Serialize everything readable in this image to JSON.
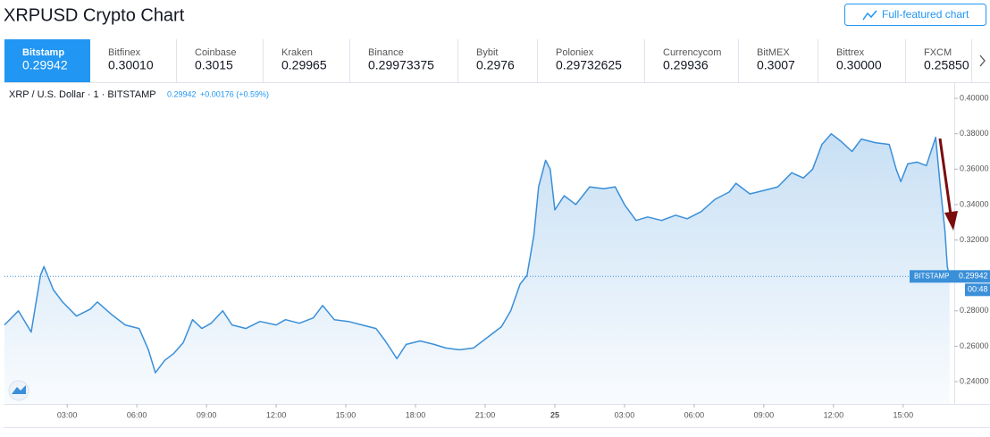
{
  "page_title": "XRPUSD Crypto Chart",
  "button": "Full-featured chart",
  "tabs": [
    {
      "name": "Bitstamp",
      "price": "0.29942"
    },
    {
      "name": "Bitfinex",
      "price": "0.30010"
    },
    {
      "name": "Coinbase",
      "price": "0.3015"
    },
    {
      "name": "Kraken",
      "price": "0.29965"
    },
    {
      "name": "Binance",
      "price": "0.29973375"
    },
    {
      "name": "Bybit",
      "price": "0.2976"
    },
    {
      "name": "Poloniex",
      "price": "0.29732625"
    },
    {
      "name": "Currencycom",
      "price": "0.29936"
    },
    {
      "name": "BitMEX",
      "price": "0.3007"
    },
    {
      "name": "Bittrex",
      "price": "0.30000"
    },
    {
      "name": "FXCM",
      "price": "0.25850"
    }
  ],
  "chart_data": {
    "type": "line",
    "symbol": "XRP / U.S. Dollar · 1 · BITSTAMP",
    "price": "0.29942",
    "change": "+0.00176 (+0.59%)",
    "series": [
      {
        "name": "XRPUSD",
        "color": "#3a8fd9",
        "x": [
          0.3,
          0.9,
          1.45,
          1.85,
          2.0,
          2.4,
          2.8,
          3.4,
          4.0,
          4.3,
          4.9,
          5.5,
          6.1,
          6.5,
          6.8,
          7.2,
          7.6,
          8.0,
          8.4,
          8.8,
          9.2,
          9.7,
          10.1,
          10.7,
          11.3,
          12.0,
          12.4,
          13.0,
          13.6,
          14.0,
          14.5,
          15.1,
          15.7,
          16.3,
          16.7,
          17.2,
          17.6,
          18.2,
          18.8,
          19.3,
          19.9,
          20.5,
          21.1,
          21.7,
          22.1,
          22.5,
          22.8,
          23.1,
          23.3,
          23.6,
          23.8,
          24.0,
          24.4,
          24.9,
          25.5,
          26.1,
          26.6,
          27.0,
          27.5,
          28.0,
          28.6,
          29.2,
          29.7,
          30.3,
          30.9,
          31.5,
          31.8,
          32.4,
          33.0,
          33.6,
          34.2,
          34.7,
          35.1,
          35.5,
          35.9,
          36.3,
          36.8,
          37.2,
          37.8,
          38.4,
          38.7,
          38.9,
          39.2,
          39.6,
          40.0,
          40.4,
          40.6,
          40.8,
          40.9,
          41.0
        ],
        "values": [
          0.272,
          0.28,
          0.268,
          0.3,
          0.305,
          0.292,
          0.285,
          0.277,
          0.281,
          0.285,
          0.278,
          0.272,
          0.27,
          0.258,
          0.245,
          0.252,
          0.256,
          0.262,
          0.275,
          0.27,
          0.273,
          0.28,
          0.272,
          0.27,
          0.274,
          0.272,
          0.275,
          0.273,
          0.276,
          0.283,
          0.275,
          0.274,
          0.272,
          0.27,
          0.263,
          0.253,
          0.261,
          0.263,
          0.261,
          0.259,
          0.258,
          0.259,
          0.265,
          0.271,
          0.28,
          0.295,
          0.3,
          0.323,
          0.35,
          0.365,
          0.36,
          0.337,
          0.345,
          0.34,
          0.35,
          0.349,
          0.35,
          0.34,
          0.331,
          0.333,
          0.331,
          0.334,
          0.332,
          0.336,
          0.343,
          0.347,
          0.352,
          0.346,
          0.348,
          0.35,
          0.358,
          0.355,
          0.36,
          0.374,
          0.38,
          0.376,
          0.37,
          0.377,
          0.375,
          0.374,
          0.36,
          0.353,
          0.363,
          0.364,
          0.362,
          0.378,
          0.35,
          0.325,
          0.305,
          0.29942
        ]
      }
    ],
    "xlim": [
      0.3,
      41.2
    ],
    "xticks": [
      {
        "value": 3,
        "label": "03:00"
      },
      {
        "value": 6,
        "label": "06:00"
      },
      {
        "value": 9,
        "label": "09:00"
      },
      {
        "value": 12,
        "label": "12:00"
      },
      {
        "value": 15,
        "label": "15:00"
      },
      {
        "value": 18,
        "label": "18:00"
      },
      {
        "value": 21,
        "label": "21:00"
      },
      {
        "value": 24,
        "label": "25"
      },
      {
        "value": 27,
        "label": "03:00"
      },
      {
        "value": 30,
        "label": "06:00"
      },
      {
        "value": 33,
        "label": "09:00"
      },
      {
        "value": 36,
        "label": "12:00"
      },
      {
        "value": 39,
        "label": "15:00"
      }
    ],
    "ylim": [
      0.2274,
      0.4086
    ],
    "yticks": [
      {
        "value": 0.24,
        "label": "0.24000"
      },
      {
        "value": 0.26,
        "label": "0.26000"
      },
      {
        "value": 0.28,
        "label": "0.28000"
      },
      {
        "value": 0.3,
        "label": "0.30000"
      },
      {
        "value": 0.32,
        "label": "0.32000"
      },
      {
        "value": 0.34,
        "label": "0.34000"
      },
      {
        "value": 0.36,
        "label": "0.36000"
      },
      {
        "value": 0.38,
        "label": "0.38000"
      },
      {
        "value": 0.4,
        "label": "0.40000"
      }
    ],
    "grid": false,
    "price_line": {
      "label": "BITSTAMP",
      "value": 0.29942,
      "countdown": "00:48"
    }
  }
}
